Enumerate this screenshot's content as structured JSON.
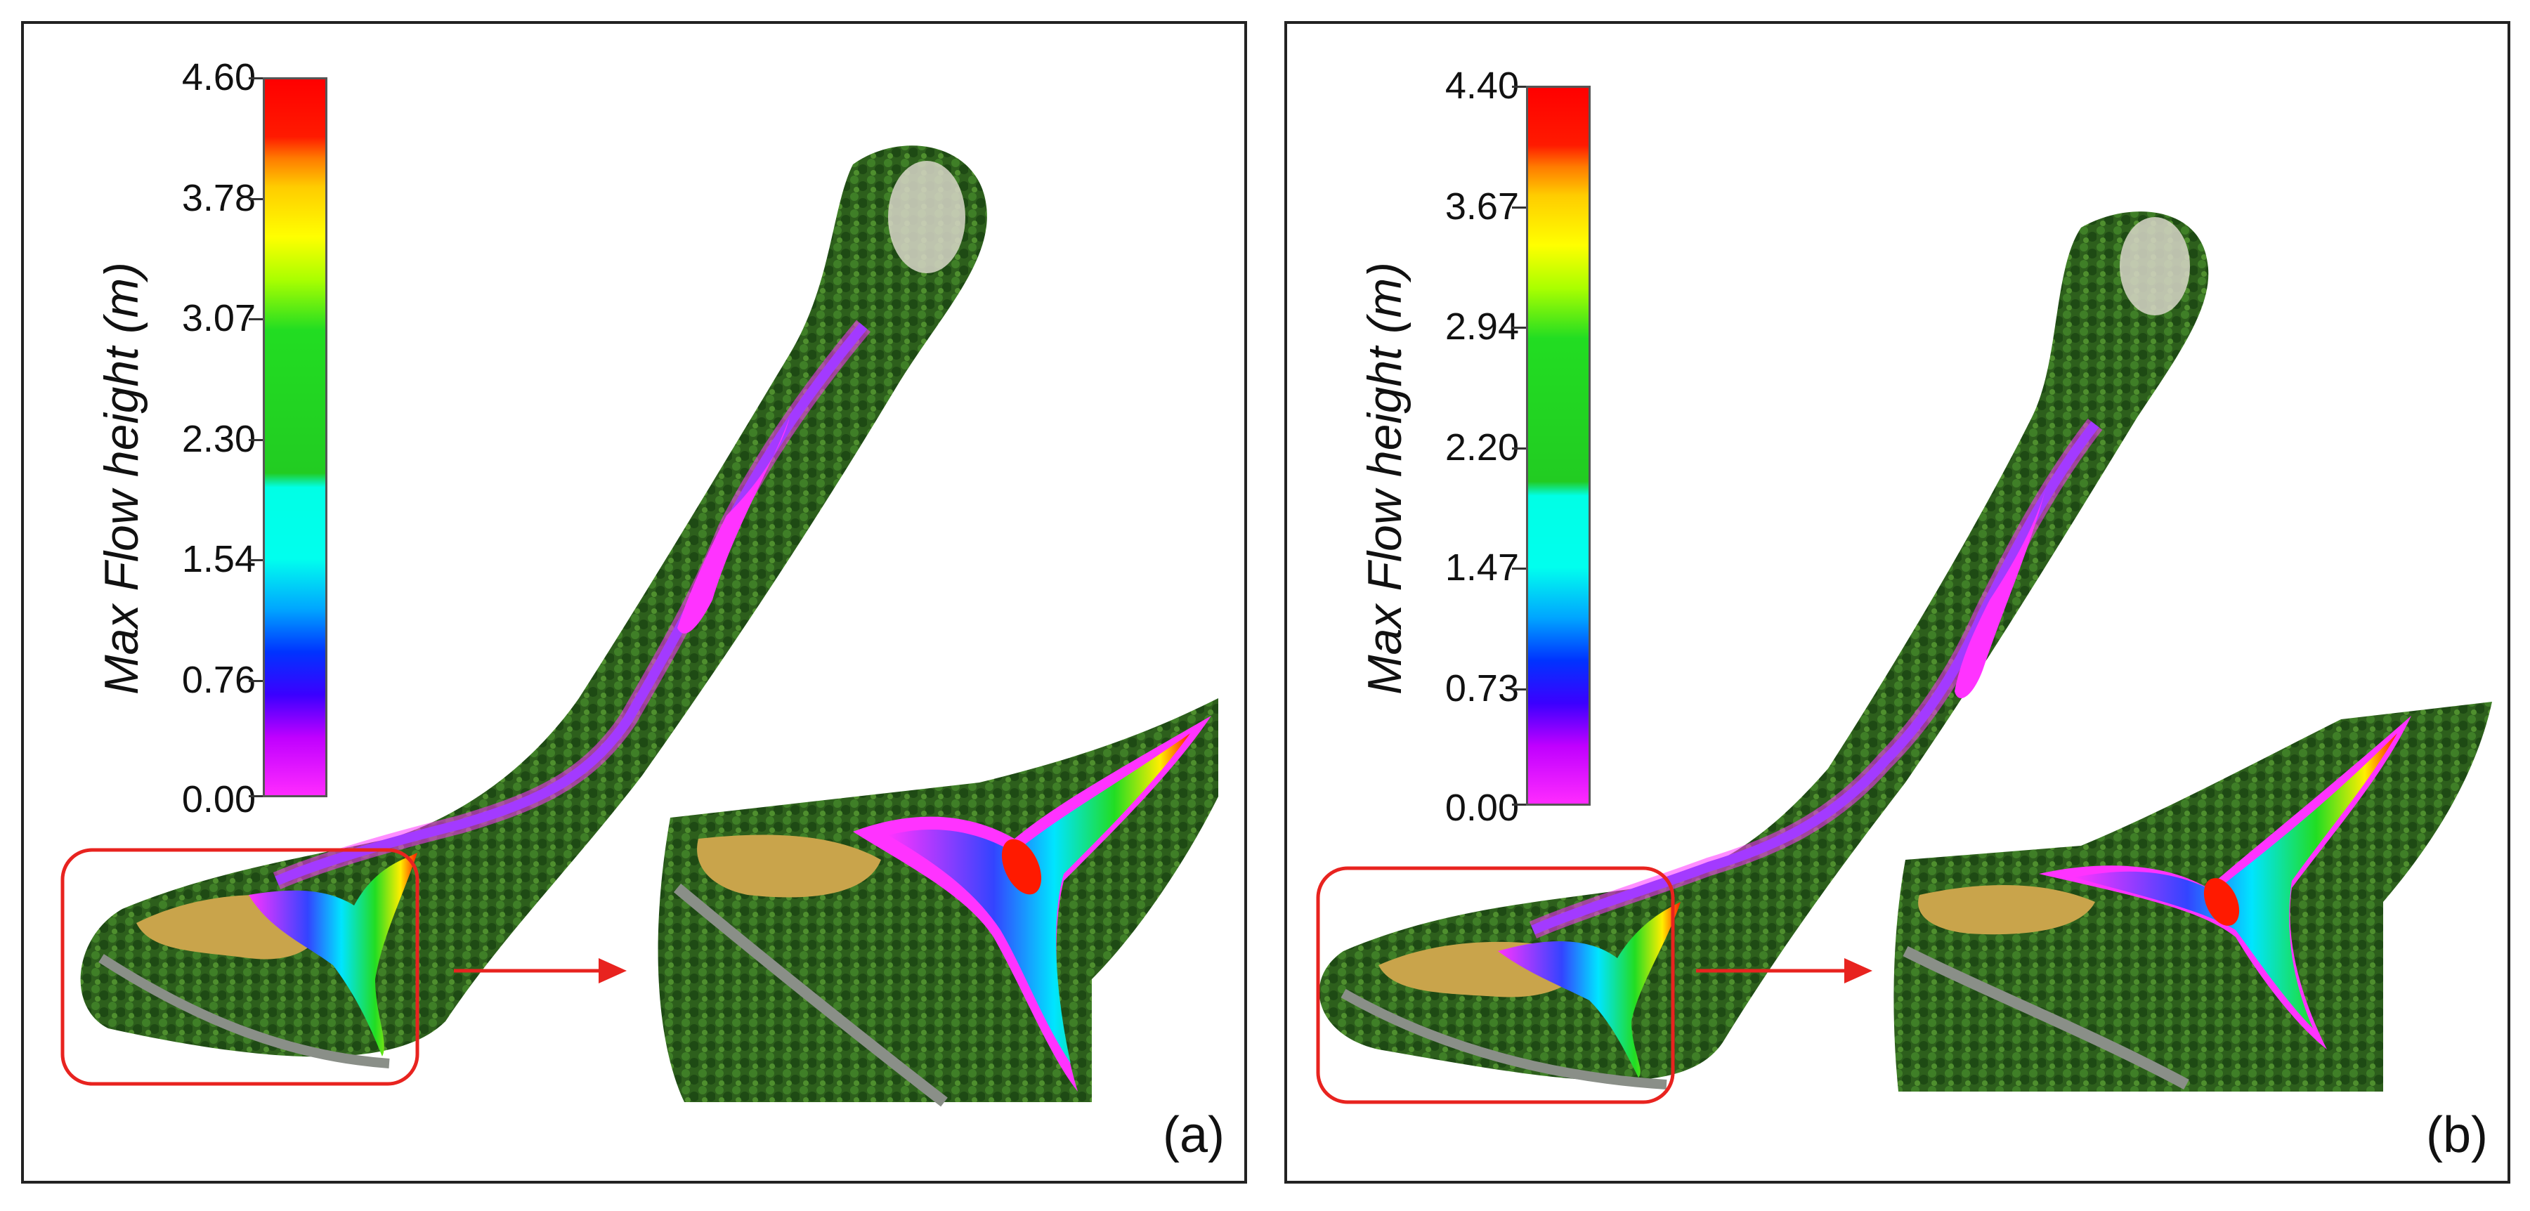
{
  "figure": {
    "panels": [
      {
        "id": "a",
        "label": "(a)",
        "colorbar": {
          "title": "Max Flow height (m)",
          "ticks": [
            "4.60",
            "3.78",
            "3.07",
            "2.30",
            "1.54",
            "0.76",
            "0.00"
          ]
        }
      },
      {
        "id": "b",
        "label": "(b)",
        "colorbar": {
          "title": "Max Flow height (m)",
          "ticks": [
            "4.40",
            "3.67",
            "2.94",
            "2.20",
            "1.47",
            "0.73",
            "0.00"
          ]
        }
      }
    ],
    "colors": {
      "frame": "#222222",
      "highlight_box": "#e8231f",
      "arrow": "#e8231f",
      "terrain_dark": "#1f4d17",
      "terrain_mid": "#3c7a24",
      "field": "#c9a44b",
      "flow_low": "#ff33ff",
      "flow_high": "#ff0000"
    }
  }
}
